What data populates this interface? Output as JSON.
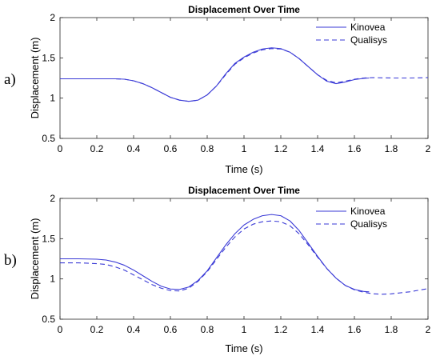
{
  "chart_data": [
    {
      "panel_label": "a)",
      "type": "line",
      "title": "Displacement Over Time",
      "xlabel": "Time (s)",
      "ylabel": "Displacement (m)",
      "xlim": [
        0,
        2
      ],
      "ylim": [
        0.5,
        2
      ],
      "xticks": [
        0,
        0.2,
        0.4,
        0.6,
        0.8,
        1,
        1.2,
        1.4,
        1.6,
        1.8,
        2
      ],
      "xtick_labels": [
        "0",
        "0.2",
        "0.4",
        "0.6",
        "0.8",
        "1",
        "1.2",
        "1.4",
        "1.6",
        "1.8",
        "2"
      ],
      "yticks": [
        0.5,
        1,
        1.5,
        2
      ],
      "ytick_labels": [
        "0.5",
        "1",
        "1.5",
        "2"
      ],
      "grid": false,
      "legend_position": "top-right",
      "series": [
        {
          "name": "Kinovea",
          "style": "solid",
          "color": "#3a3ad6",
          "x": [
            0,
            0.1,
            0.2,
            0.3,
            0.35,
            0.4,
            0.45,
            0.5,
            0.55,
            0.6,
            0.65,
            0.7,
            0.75,
            0.8,
            0.85,
            0.9,
            0.95,
            1.0,
            1.05,
            1.1,
            1.15,
            1.2,
            1.25,
            1.3,
            1.35,
            1.4,
            1.45,
            1.5,
            1.55,
            1.6,
            1.65,
            1.68
          ],
          "y": [
            1.24,
            1.24,
            1.24,
            1.24,
            1.235,
            1.215,
            1.18,
            1.13,
            1.07,
            1.01,
            0.975,
            0.96,
            0.975,
            1.04,
            1.15,
            1.3,
            1.43,
            1.51,
            1.57,
            1.61,
            1.625,
            1.615,
            1.57,
            1.49,
            1.39,
            1.29,
            1.21,
            1.18,
            1.2,
            1.23,
            1.245,
            1.25
          ]
        },
        {
          "name": "Qualisys",
          "style": "dashed",
          "color": "#3a3ad6",
          "x": [
            0,
            0.1,
            0.2,
            0.3,
            0.35,
            0.4,
            0.45,
            0.5,
            0.55,
            0.6,
            0.65,
            0.7,
            0.75,
            0.8,
            0.85,
            0.9,
            0.95,
            1.0,
            1.05,
            1.1,
            1.15,
            1.2,
            1.25,
            1.3,
            1.35,
            1.4,
            1.45,
            1.5,
            1.55,
            1.6,
            1.65,
            1.7,
            1.8,
            1.9,
            2.0
          ],
          "y": [
            1.24,
            1.24,
            1.24,
            1.24,
            1.235,
            1.215,
            1.18,
            1.13,
            1.07,
            1.01,
            0.975,
            0.96,
            0.975,
            1.04,
            1.15,
            1.29,
            1.42,
            1.5,
            1.56,
            1.6,
            1.615,
            1.61,
            1.57,
            1.49,
            1.39,
            1.29,
            1.22,
            1.19,
            1.21,
            1.235,
            1.25,
            1.255,
            1.25,
            1.25,
            1.255
          ]
        }
      ]
    },
    {
      "panel_label": "b)",
      "type": "line",
      "title": "Displacement Over Time",
      "xlabel": "Time (s)",
      "ylabel": "Displacement (m)",
      "xlim": [
        0,
        2
      ],
      "ylim": [
        0.5,
        2
      ],
      "xticks": [
        0,
        0.2,
        0.4,
        0.6,
        0.8,
        1,
        1.2,
        1.4,
        1.6,
        1.8,
        2
      ],
      "xtick_labels": [
        "0",
        "0.2",
        "0.4",
        "0.6",
        "0.8",
        "1",
        "1.2",
        "1.4",
        "1.6",
        "1.8",
        "2"
      ],
      "yticks": [
        0.5,
        1,
        1.5,
        2
      ],
      "ytick_labels": [
        "0.5",
        "1",
        "1.5",
        "2"
      ],
      "grid": false,
      "legend_position": "top-right",
      "series": [
        {
          "name": "Kinovea",
          "style": "solid",
          "color": "#3a3ad6",
          "x": [
            0,
            0.1,
            0.2,
            0.25,
            0.3,
            0.35,
            0.4,
            0.45,
            0.5,
            0.55,
            0.6,
            0.65,
            0.7,
            0.75,
            0.8,
            0.85,
            0.9,
            0.95,
            1.0,
            1.05,
            1.1,
            1.15,
            1.2,
            1.25,
            1.3,
            1.35,
            1.4,
            1.45,
            1.5,
            1.55,
            1.6,
            1.65,
            1.68
          ],
          "y": [
            1.25,
            1.25,
            1.245,
            1.235,
            1.21,
            1.17,
            1.11,
            1.04,
            0.97,
            0.91,
            0.875,
            0.87,
            0.9,
            0.98,
            1.1,
            1.26,
            1.42,
            1.56,
            1.67,
            1.74,
            1.785,
            1.8,
            1.785,
            1.72,
            1.6,
            1.44,
            1.28,
            1.13,
            1.01,
            0.92,
            0.87,
            0.845,
            0.84
          ]
        },
        {
          "name": "Qualisys",
          "style": "dashed",
          "color": "#3a3ad6",
          "x": [
            0,
            0.1,
            0.2,
            0.25,
            0.3,
            0.35,
            0.4,
            0.45,
            0.5,
            0.55,
            0.6,
            0.65,
            0.7,
            0.75,
            0.8,
            0.85,
            0.9,
            0.95,
            1.0,
            1.05,
            1.1,
            1.15,
            1.2,
            1.25,
            1.3,
            1.35,
            1.4,
            1.45,
            1.5,
            1.55,
            1.6,
            1.65,
            1.7,
            1.75,
            1.8,
            1.9,
            2.0
          ],
          "y": [
            1.2,
            1.2,
            1.19,
            1.18,
            1.15,
            1.11,
            1.05,
            0.99,
            0.93,
            0.885,
            0.855,
            0.85,
            0.885,
            0.97,
            1.09,
            1.24,
            1.39,
            1.52,
            1.62,
            1.68,
            1.71,
            1.72,
            1.71,
            1.66,
            1.56,
            1.42,
            1.27,
            1.13,
            1.01,
            0.92,
            0.865,
            0.835,
            0.815,
            0.81,
            0.815,
            0.84,
            0.88
          ]
        }
      ]
    }
  ]
}
